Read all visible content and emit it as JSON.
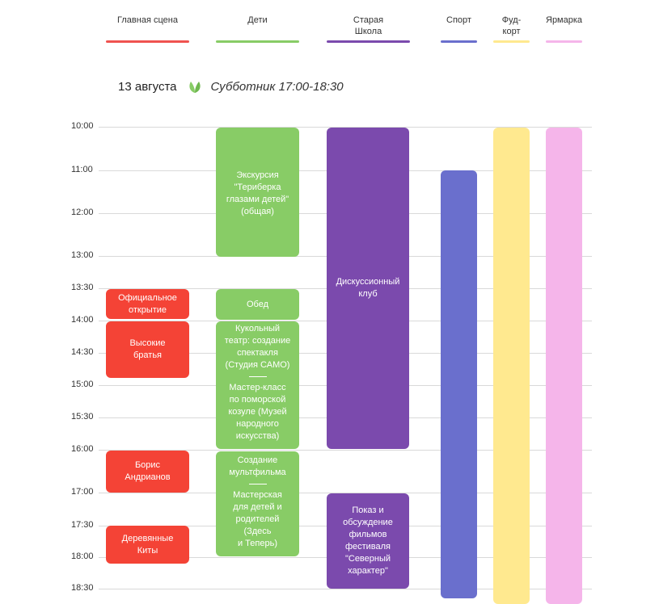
{
  "columns": [
    {
      "key": "main",
      "label": "Главная сцена",
      "color": "#ef5350"
    },
    {
      "key": "kids",
      "label": "Дети",
      "color": "#88cc66"
    },
    {
      "key": "oldschool",
      "label": "Старая Школа",
      "color": "#7b4aad"
    },
    {
      "key": "sport",
      "label": "Спорт",
      "color": "#6a6fcd"
    },
    {
      "key": "food",
      "label": "Фуд-корт",
      "color": "#ffe98f"
    },
    {
      "key": "fair",
      "label": "Ярмарка",
      "color": "#f5b5ea"
    }
  ],
  "header": {
    "date": "13 августа",
    "event": "Субботник 17:00-18:30",
    "icon": "leaf-icon"
  },
  "times": [
    "10:00",
    "11:00",
    "12:00",
    "13:00",
    "13:30",
    "14:00",
    "14:30",
    "15:00",
    "15:30",
    "16:00",
    "17:00",
    "17:30",
    "18:00",
    "18:30"
  ],
  "events": {
    "main": [
      {
        "lines": [
          "Официальное",
          "открытие"
        ]
      },
      {
        "lines": [
          "Высокие",
          "братья"
        ]
      },
      {
        "lines": [
          "Борис",
          "Андрианов"
        ]
      },
      {
        "lines": [
          "Деревянные",
          "Киты"
        ]
      }
    ],
    "kids": {
      "excursion": {
        "lines": [
          "Экскурсия",
          "\"Териберка",
          "глазами детей\"",
          "(общая)"
        ]
      },
      "lunch": {
        "lines": [
          "Обед"
        ]
      },
      "puppet": {
        "lines": [
          "Кукольный",
          "театр: создание",
          "спектакля",
          "(Студия САМО)"
        ]
      },
      "master": {
        "lines": [
          "Мастер-класс",
          "по поморской",
          "козуле (Музей",
          "народного",
          "искусства)"
        ]
      },
      "cartoon": {
        "lines": [
          "Создание",
          "мультфильма"
        ]
      },
      "workshop": {
        "lines": [
          "Мастерская",
          "для детей и",
          "родителей",
          "(Здесь",
          "и Теперь)"
        ]
      }
    },
    "oldschool": [
      {
        "lines": [
          "Дискуссионный",
          "клуб"
        ]
      },
      {
        "lines": [
          "Показ и",
          "обсуждение",
          "фильмов",
          "фестиваля",
          "\"Северный",
          "характер\""
        ]
      }
    ]
  }
}
